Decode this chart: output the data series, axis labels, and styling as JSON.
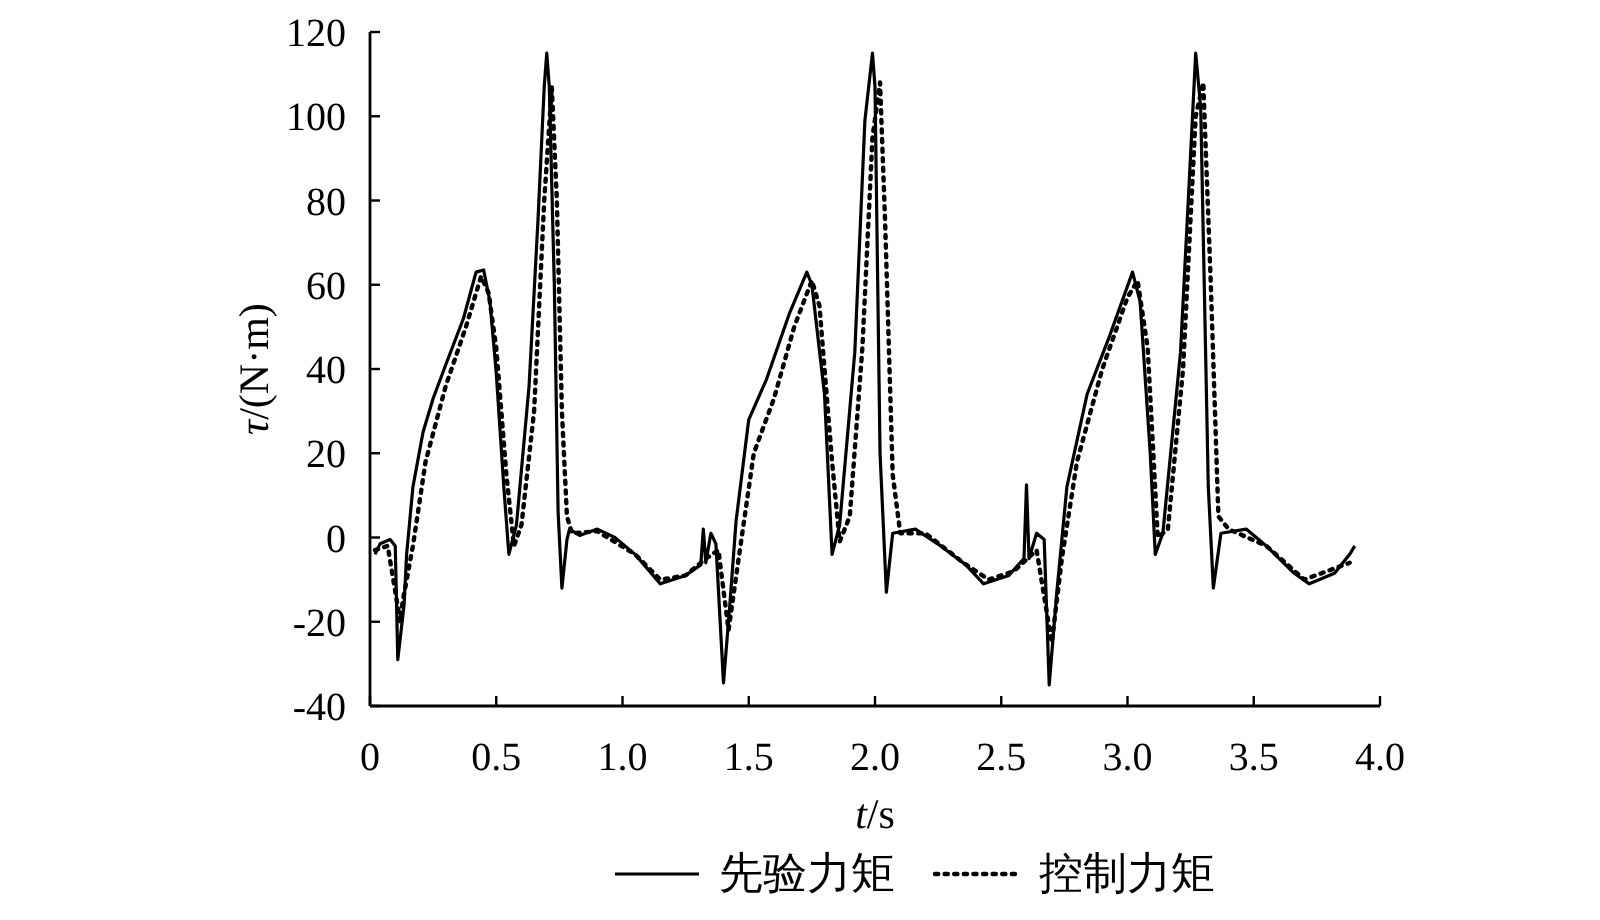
{
  "chart_data": {
    "type": "line",
    "xlabel": "*t*/s",
    "ylabel": "*τ*/(N·m)",
    "xlim": [
      0,
      4.0
    ],
    "ylim": [
      -40,
      120
    ],
    "xticks": [
      0,
      {
        "value": 0.5,
        "label": "0.5"
      },
      {
        "value": 1,
        "label": "1.0"
      },
      {
        "value": 1.5,
        "label": "1.5"
      },
      {
        "value": 2,
        "label": "2.0"
      },
      {
        "value": 2.5,
        "label": "2.5"
      },
      {
        "value": 3,
        "label": "3.0"
      },
      {
        "value": 3.5,
        "label": "3.5"
      },
      {
        "value": 4,
        "label": "4.0"
      }
    ],
    "yticks": [
      -40,
      -20,
      0,
      20,
      40,
      60,
      80,
      100,
      120
    ],
    "legend": "bottom",
    "series": [
      {
        "name": "先验力矩",
        "color": "#000000",
        "line_style": "solid",
        "x": [
          0.02,
          0.04,
          0.08,
          0.1,
          0.11,
          0.135,
          0.145,
          0.17,
          0.21,
          0.25,
          0.3,
          0.37,
          0.42,
          0.45,
          0.475,
          0.5,
          0.53,
          0.55,
          0.58,
          0.63,
          0.665,
          0.69,
          0.7,
          0.71,
          0.73,
          0.745,
          0.76,
          0.78,
          0.79,
          0.83,
          0.9,
          0.97,
          1.05,
          1.15,
          1.25,
          1.31,
          1.32,
          1.33,
          1.35,
          1.37,
          1.4,
          1.425,
          1.45,
          1.5,
          1.57,
          1.66,
          1.73,
          1.75,
          1.8,
          1.83,
          1.86,
          1.92,
          1.96,
          1.99,
          2.0,
          2.02,
          2.045,
          2.07,
          2.16,
          2.26,
          2.36,
          2.43,
          2.53,
          2.59,
          2.6,
          2.61,
          2.64,
          2.67,
          2.69,
          2.72,
          2.76,
          2.84,
          2.93,
          3.02,
          3.05,
          3.09,
          3.11,
          3.14,
          3.21,
          3.25,
          3.27,
          3.29,
          3.32,
          3.34,
          3.37,
          3.47,
          3.55,
          3.66,
          3.72,
          3.82,
          3.88,
          3.9
        ],
        "values": [
          -4,
          -1.5,
          -0.5,
          -2,
          -29,
          -16,
          -4,
          12,
          25,
          33,
          41,
          52,
          63,
          63.5,
          56,
          39,
          12,
          -4,
          3,
          36,
          75,
          107,
          115,
          107,
          60,
          6,
          -12,
          -0.5,
          2,
          0.5,
          2,
          0,
          -4,
          -11,
          -9,
          -6.5,
          2,
          -6,
          1,
          -1.5,
          -34.5,
          -16,
          4,
          28,
          37.5,
          53,
          63,
          60,
          34,
          -4,
          3,
          44,
          99,
          115,
          107,
          20,
          -13,
          1,
          2,
          -2,
          -6.5,
          -11,
          -9,
          -5,
          12.5,
          -5,
          1,
          -0.5,
          -35,
          -13,
          12,
          34,
          48,
          63,
          56,
          20,
          -4,
          1,
          44,
          91,
          115,
          102,
          12,
          -12,
          1,
          2,
          -2,
          -8.5,
          -11,
          -8.5,
          -4,
          -2
        ]
      },
      {
        "name": "控制力矩",
        "color": "#000000",
        "line_style": "dotted",
        "x": [
          0.02,
          0.07,
          0.12,
          0.13,
          0.17,
          0.22,
          0.3,
          0.38,
          0.44,
          0.47,
          0.5,
          0.54,
          0.57,
          0.6,
          0.65,
          0.69,
          0.72,
          0.74,
          0.76,
          0.78,
          0.8,
          0.9,
          1.05,
          1.15,
          1.25,
          1.33,
          1.38,
          1.42,
          1.46,
          1.52,
          1.6,
          1.68,
          1.75,
          1.78,
          1.83,
          1.86,
          1.9,
          1.95,
          1.99,
          2.02,
          2.04,
          2.07,
          2.1,
          2.2,
          2.35,
          2.45,
          2.55,
          2.64,
          2.7,
          2.74,
          2.8,
          2.9,
          3.0,
          3.04,
          3.08,
          3.12,
          3.16,
          3.22,
          3.27,
          3.3,
          3.33,
          3.36,
          3.4,
          3.55,
          3.7,
          3.88
        ],
        "values": [
          -3,
          -2,
          -20,
          -15,
          -2,
          18,
          36,
          50,
          62,
          58,
          45,
          15,
          -2,
          3,
          30,
          80,
          107,
          80,
          30,
          5,
          1,
          1.5,
          -4,
          -10,
          -9,
          -5,
          -3,
          -22,
          -5,
          20,
          33,
          50,
          61,
          55,
          18,
          -1,
          5,
          45,
          95,
          108,
          75,
          15,
          1,
          1,
          -6,
          -10,
          -8,
          -3,
          -25,
          -5,
          18,
          40,
          57,
          61,
          45,
          0,
          2,
          40,
          100,
          108,
          60,
          5,
          2,
          -2,
          -10,
          -6
        ]
      }
    ]
  }
}
